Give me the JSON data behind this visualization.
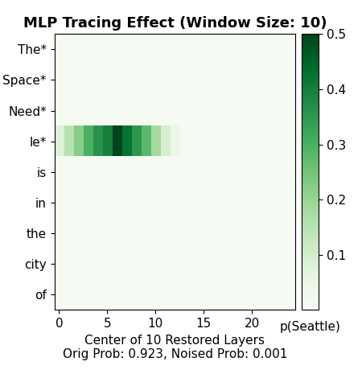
{
  "title": "MLP Tracing Effect (Window Size: 10)",
  "xlabel": "Center of 10 Restored Layers",
  "xlabel2": "Orig Prob: 0.923, Noised Prob: 0.001",
  "colorbar_label": "p(Seattle)",
  "ylabels": [
    "The*",
    "Space*",
    "Need*",
    "le*",
    "is",
    "in",
    "the",
    "city",
    "of"
  ],
  "num_cols": 25,
  "vmin": 0.0,
  "vmax": 0.5,
  "xticks": [
    0,
    5,
    10,
    15,
    20
  ],
  "heatmap_data": [
    [
      0.005,
      0.005,
      0.005,
      0.005,
      0.005,
      0.005,
      0.005,
      0.005,
      0.005,
      0.005,
      0.005,
      0.005,
      0.005,
      0.005,
      0.005,
      0.005,
      0.005,
      0.005,
      0.005,
      0.005,
      0.005,
      0.005,
      0.005,
      0.005,
      0.005
    ],
    [
      0.005,
      0.005,
      0.005,
      0.005,
      0.005,
      0.005,
      0.005,
      0.005,
      0.005,
      0.005,
      0.005,
      0.005,
      0.005,
      0.005,
      0.005,
      0.005,
      0.005,
      0.005,
      0.005,
      0.005,
      0.005,
      0.005,
      0.005,
      0.005,
      0.005
    ],
    [
      0.005,
      0.005,
      0.005,
      0.005,
      0.005,
      0.005,
      0.005,
      0.005,
      0.005,
      0.005,
      0.005,
      0.005,
      0.005,
      0.005,
      0.005,
      0.005,
      0.005,
      0.005,
      0.005,
      0.005,
      0.005,
      0.005,
      0.005,
      0.005,
      0.005
    ],
    [
      0.08,
      0.15,
      0.22,
      0.3,
      0.36,
      0.4,
      0.5,
      0.42,
      0.35,
      0.28,
      0.18,
      0.09,
      0.04,
      0.005,
      0.005,
      0.005,
      0.005,
      0.005,
      0.005,
      0.005,
      0.005,
      0.005,
      0.005,
      0.005,
      0.005
    ],
    [
      0.005,
      0.005,
      0.005,
      0.005,
      0.005,
      0.005,
      0.005,
      0.005,
      0.005,
      0.005,
      0.005,
      0.005,
      0.005,
      0.005,
      0.005,
      0.005,
      0.005,
      0.005,
      0.005,
      0.005,
      0.005,
      0.005,
      0.005,
      0.005,
      0.005
    ],
    [
      0.005,
      0.005,
      0.005,
      0.005,
      0.005,
      0.005,
      0.005,
      0.005,
      0.005,
      0.005,
      0.005,
      0.005,
      0.005,
      0.005,
      0.005,
      0.005,
      0.005,
      0.005,
      0.005,
      0.005,
      0.005,
      0.005,
      0.005,
      0.005,
      0.005
    ],
    [
      0.005,
      0.005,
      0.005,
      0.005,
      0.005,
      0.005,
      0.005,
      0.005,
      0.005,
      0.005,
      0.005,
      0.005,
      0.005,
      0.005,
      0.005,
      0.005,
      0.005,
      0.005,
      0.005,
      0.005,
      0.005,
      0.005,
      0.005,
      0.005,
      0.005
    ],
    [
      0.005,
      0.005,
      0.005,
      0.005,
      0.005,
      0.005,
      0.005,
      0.005,
      0.005,
      0.005,
      0.005,
      0.005,
      0.005,
      0.005,
      0.005,
      0.005,
      0.005,
      0.005,
      0.005,
      0.005,
      0.005,
      0.005,
      0.005,
      0.005,
      0.005
    ],
    [
      0.005,
      0.005,
      0.005,
      0.005,
      0.005,
      0.005,
      0.005,
      0.005,
      0.005,
      0.005,
      0.005,
      0.005,
      0.005,
      0.005,
      0.005,
      0.005,
      0.005,
      0.005,
      0.005,
      0.005,
      0.005,
      0.005,
      0.005,
      0.005,
      0.005
    ]
  ],
  "cmap": "Greens",
  "figsize": [
    4.5,
    4.7
  ],
  "dpi": 100,
  "title_fontsize": 13,
  "tick_fontsize": 11,
  "label_fontsize": 11
}
